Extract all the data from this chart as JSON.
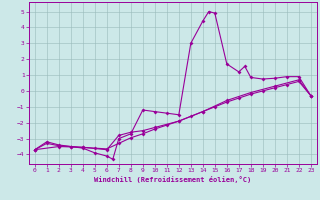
{
  "xlabel": "Windchill (Refroidissement éolien,°C)",
  "bg_color": "#cce8e8",
  "grid_color": "#99bbbb",
  "line_color": "#990099",
  "marker": "D",
  "markersize": 2,
  "linewidth": 0.8,
  "xlim": [
    -0.5,
    23.5
  ],
  "ylim": [
    -4.6,
    5.6
  ],
  "yticks": [
    -4,
    -3,
    -2,
    -1,
    0,
    1,
    2,
    3,
    4,
    5
  ],
  "xticks": [
    0,
    1,
    2,
    3,
    4,
    5,
    6,
    7,
    8,
    9,
    10,
    11,
    12,
    13,
    14,
    15,
    16,
    17,
    18,
    19,
    20,
    21,
    22,
    23
  ],
  "series1": [
    [
      0,
      -3.7
    ],
    [
      1,
      -3.2
    ],
    [
      2,
      -3.4
    ],
    [
      3,
      -3.5
    ],
    [
      4,
      -3.6
    ],
    [
      5,
      -3.9
    ],
    [
      6,
      -4.1
    ],
    [
      6.5,
      -4.3
    ],
    [
      7,
      -3.0
    ],
    [
      8,
      -2.7
    ],
    [
      9,
      -1.2
    ],
    [
      10,
      -1.3
    ],
    [
      11,
      -1.4
    ],
    [
      12,
      -1.5
    ],
    [
      13,
      3.0
    ],
    [
      14,
      4.4
    ],
    [
      14.5,
      5.0
    ],
    [
      15,
      4.9
    ],
    [
      16,
      1.7
    ],
    [
      17,
      1.2
    ],
    [
      17.5,
      1.55
    ],
    [
      18,
      0.85
    ],
    [
      19,
      0.75
    ],
    [
      20,
      0.8
    ],
    [
      21,
      0.9
    ],
    [
      22,
      0.9
    ],
    [
      23,
      -0.3
    ]
  ],
  "series2": [
    [
      0,
      -3.7
    ],
    [
      1,
      -3.3
    ],
    [
      2,
      -3.45
    ],
    [
      3,
      -3.5
    ],
    [
      4,
      -3.55
    ],
    [
      5,
      -3.6
    ],
    [
      6,
      -3.65
    ],
    [
      7,
      -3.3
    ],
    [
      8,
      -2.95
    ],
    [
      9,
      -2.7
    ],
    [
      10,
      -2.4
    ],
    [
      11,
      -2.15
    ],
    [
      12,
      -1.9
    ],
    [
      13,
      -1.6
    ],
    [
      14,
      -1.3
    ],
    [
      15,
      -1.0
    ],
    [
      16,
      -0.7
    ],
    [
      17,
      -0.45
    ],
    [
      18,
      -0.2
    ],
    [
      19,
      0.0
    ],
    [
      20,
      0.2
    ],
    [
      21,
      0.4
    ],
    [
      22,
      0.6
    ],
    [
      23,
      -0.3
    ]
  ],
  "series3": [
    [
      0,
      -3.7
    ],
    [
      2,
      -3.5
    ],
    [
      4,
      -3.55
    ],
    [
      6,
      -3.7
    ],
    [
      7,
      -2.8
    ],
    [
      8,
      -2.6
    ],
    [
      9,
      -2.5
    ],
    [
      10,
      -2.3
    ],
    [
      12,
      -1.9
    ],
    [
      14,
      -1.3
    ],
    [
      16,
      -0.6
    ],
    [
      18,
      -0.1
    ],
    [
      20,
      0.3
    ],
    [
      22,
      0.7
    ],
    [
      23,
      -0.3
    ]
  ]
}
